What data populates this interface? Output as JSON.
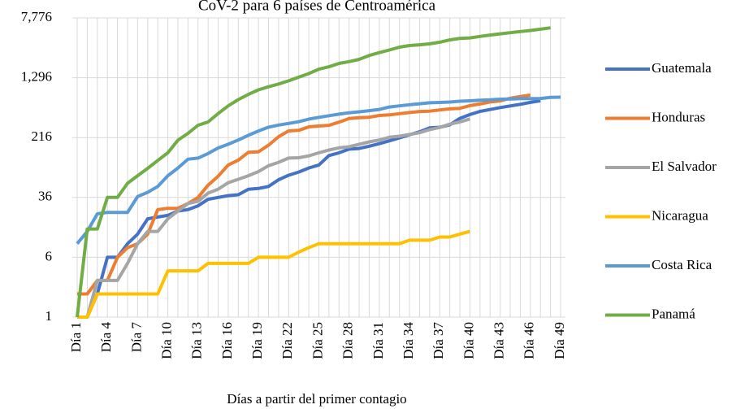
{
  "chart_data": {
    "type": "line",
    "title": "CoV-2 para 6 países de Centroamérica",
    "x_label": "Días a partir del primer contagio",
    "log_base": 6,
    "grid": true,
    "legend": "right",
    "ylim": [
      1,
      7776
    ],
    "yticks": [
      1,
      6,
      36,
      216,
      {
        "value": 1296,
        "label": "1,296"
      },
      {
        "value": 7776,
        "label": "7,776"
      }
    ],
    "categories": [
      "Día 1",
      null,
      null,
      "Día 4",
      null,
      null,
      "Día 7",
      null,
      null,
      "Día 10",
      null,
      null,
      "Día 13",
      null,
      null,
      "Día 16",
      null,
      null,
      "Día 19",
      null,
      null,
      "Día 22",
      null,
      null,
      "Día 25",
      null,
      null,
      "Día 28",
      null,
      null,
      "Día 31",
      null,
      null,
      "Día 34",
      null,
      null,
      "Día 37",
      null,
      null,
      "Día 40",
      null,
      null,
      "Día 43",
      null,
      null,
      "Día 46",
      null,
      null,
      "Día 49"
    ],
    "series": [
      {
        "name": "Guatemala",
        "color": "#4472c4",
        "values": [
          1,
          1,
          2,
          6,
          6,
          9,
          12,
          19,
          20,
          21,
          24,
          25,
          28,
          34,
          36,
          38,
          39,
          46,
          47,
          50,
          61,
          70,
          77,
          87,
          95,
          126,
          137,
          153,
          156,
          167,
          180,
          196,
          214,
          235,
          257,
          289,
          294,
          316,
          384,
          430,
          473,
          500,
          530,
          557,
          585,
          620,
          650,
          null,
          null
        ]
      },
      {
        "name": "Honduras",
        "color": "#ed7d31",
        "values": [
          2,
          2,
          3,
          3,
          6,
          8,
          9,
          12,
          25,
          26,
          26,
          30,
          36,
          52,
          68,
          95,
          110,
          139,
          141,
          172,
          222,
          264,
          268,
          298,
          305,
          312,
          343,
          382,
          392,
          397,
          419,
          426,
          442,
          457,
          472,
          477,
          494,
          510,
          519,
          562,
          591,
          627,
          647,
          702,
          738,
          771,
          null,
          null,
          null
        ]
      },
      {
        "name": "El Salvador",
        "color": "#a5a5a5",
        "values": [
          null,
          1,
          3,
          3,
          3,
          5,
          9,
          13,
          13,
          19,
          24,
          30,
          32,
          41,
          46,
          56,
          62,
          69,
          78,
          93,
          103,
          117,
          118,
          125,
          137,
          149,
          159,
          164,
          177,
          190,
          201,
          218,
          225,
          237,
          250,
          274,
          293,
          323,
          345,
          377,
          null,
          null,
          null,
          null,
          null,
          null,
          null,
          null,
          null
        ]
      },
      {
        "name": "Nicaragua",
        "color": "#ffc000",
        "values": [
          1,
          1,
          2,
          2,
          2,
          2,
          2,
          2,
          2,
          4,
          4,
          4,
          4,
          5,
          5,
          5,
          5,
          5,
          6,
          6,
          6,
          6,
          7,
          8,
          9,
          9,
          9,
          9,
          9,
          9,
          9,
          9,
          9,
          10,
          10,
          10,
          11,
          11,
          12,
          13,
          null,
          null,
          null,
          null,
          null,
          null,
          null,
          null,
          null
        ]
      },
      {
        "name": "Costa Rica",
        "color": "#5b9bd5",
        "values": [
          9,
          13,
          22,
          23,
          23,
          23,
          37,
          42,
          50,
          69,
          87,
          113,
          117,
          134,
          158,
          177,
          201,
          231,
          263,
          295,
          314,
          330,
          347,
          375,
          396,
          416,
          435,
          454,
          467,
          483,
          502,
          539,
          558,
          577,
          595,
          613,
          618,
          626,
          642,
          649,
          660,
          669,
          681,
          687,
          693,
          695,
          697,
          719,
          725
        ]
      },
      {
        "name": "Panamá",
        "color": "#70ad47",
        "values": [
          1,
          14,
          14,
          36,
          36,
          55,
          69,
          86,
          109,
          137,
          200,
          245,
          313,
          345,
          443,
          558,
          674,
          786,
          901,
          989,
          1075,
          1181,
          1317,
          1468,
          1673,
          1801,
          1988,
          2100,
          2249,
          2528,
          2752,
          2974,
          3234,
          3400,
          3472,
          3574,
          3751,
          4016,
          4210,
          4273,
          4467,
          4658,
          4821,
          4992,
          5166,
          5338,
          5538,
          5779,
          null
        ]
      }
    ]
  }
}
